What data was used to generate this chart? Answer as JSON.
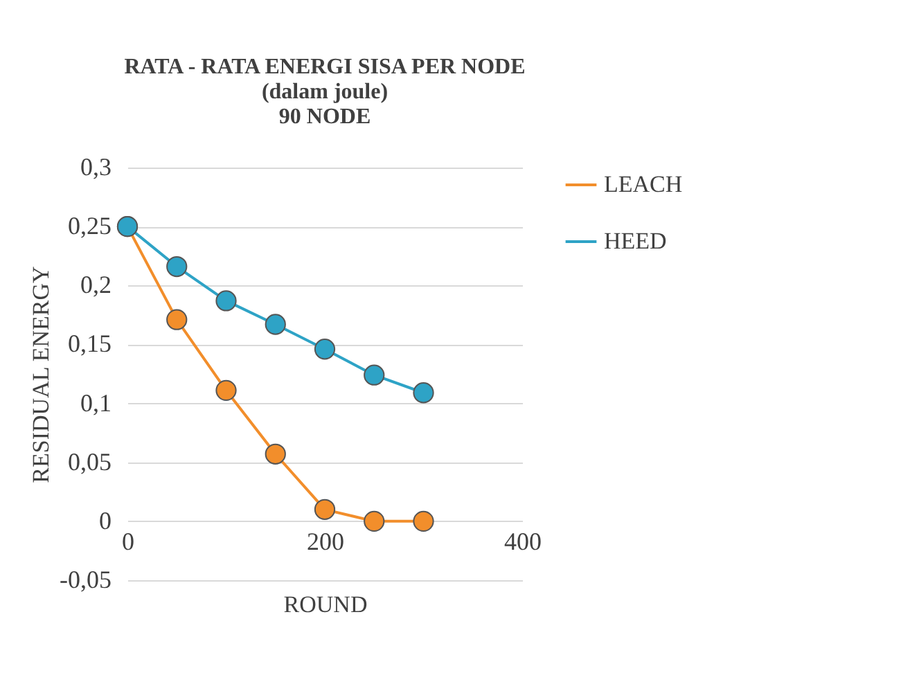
{
  "chart_data": {
    "type": "line",
    "title": "RATA - RATA  ENERGI  SISA PER NODE\n(dalam joule)\n90 NODE",
    "xlabel": "ROUND",
    "ylabel": "RESIDUAL ENERGY",
    "x": [
      0,
      50,
      100,
      150,
      200,
      250,
      300
    ],
    "series": [
      {
        "name": "LEACH",
        "color": "#f28e2b",
        "values": [
          0.25,
          0.171,
          0.111,
          0.057,
          0.01,
          0,
          0
        ]
      },
      {
        "name": "HEED",
        "color": "#2ea3c6",
        "values": [
          0.25,
          0.216,
          0.187,
          0.167,
          0.146,
          0.124,
          0.109
        ]
      }
    ],
    "xlim": [
      0,
      400
    ],
    "xticks": [
      0,
      200,
      400
    ],
    "ylim": [
      -0.05,
      0.3
    ],
    "yticks": [
      {
        "value": -0.05,
        "label": "-0,05"
      },
      {
        "value": 0,
        "label": "0"
      },
      {
        "value": 0.05,
        "label": "0,05"
      },
      {
        "value": 0.1,
        "label": "0,1"
      },
      {
        "value": 0.15,
        "label": "0,15"
      },
      {
        "value": 0.2,
        "label": "0,2"
      },
      {
        "value": 0.25,
        "label": "0,25"
      },
      {
        "value": 0.3,
        "label": "0,3"
      }
    ],
    "grid": "y",
    "legend": "right",
    "marker": "circle",
    "line_style": "solid"
  }
}
